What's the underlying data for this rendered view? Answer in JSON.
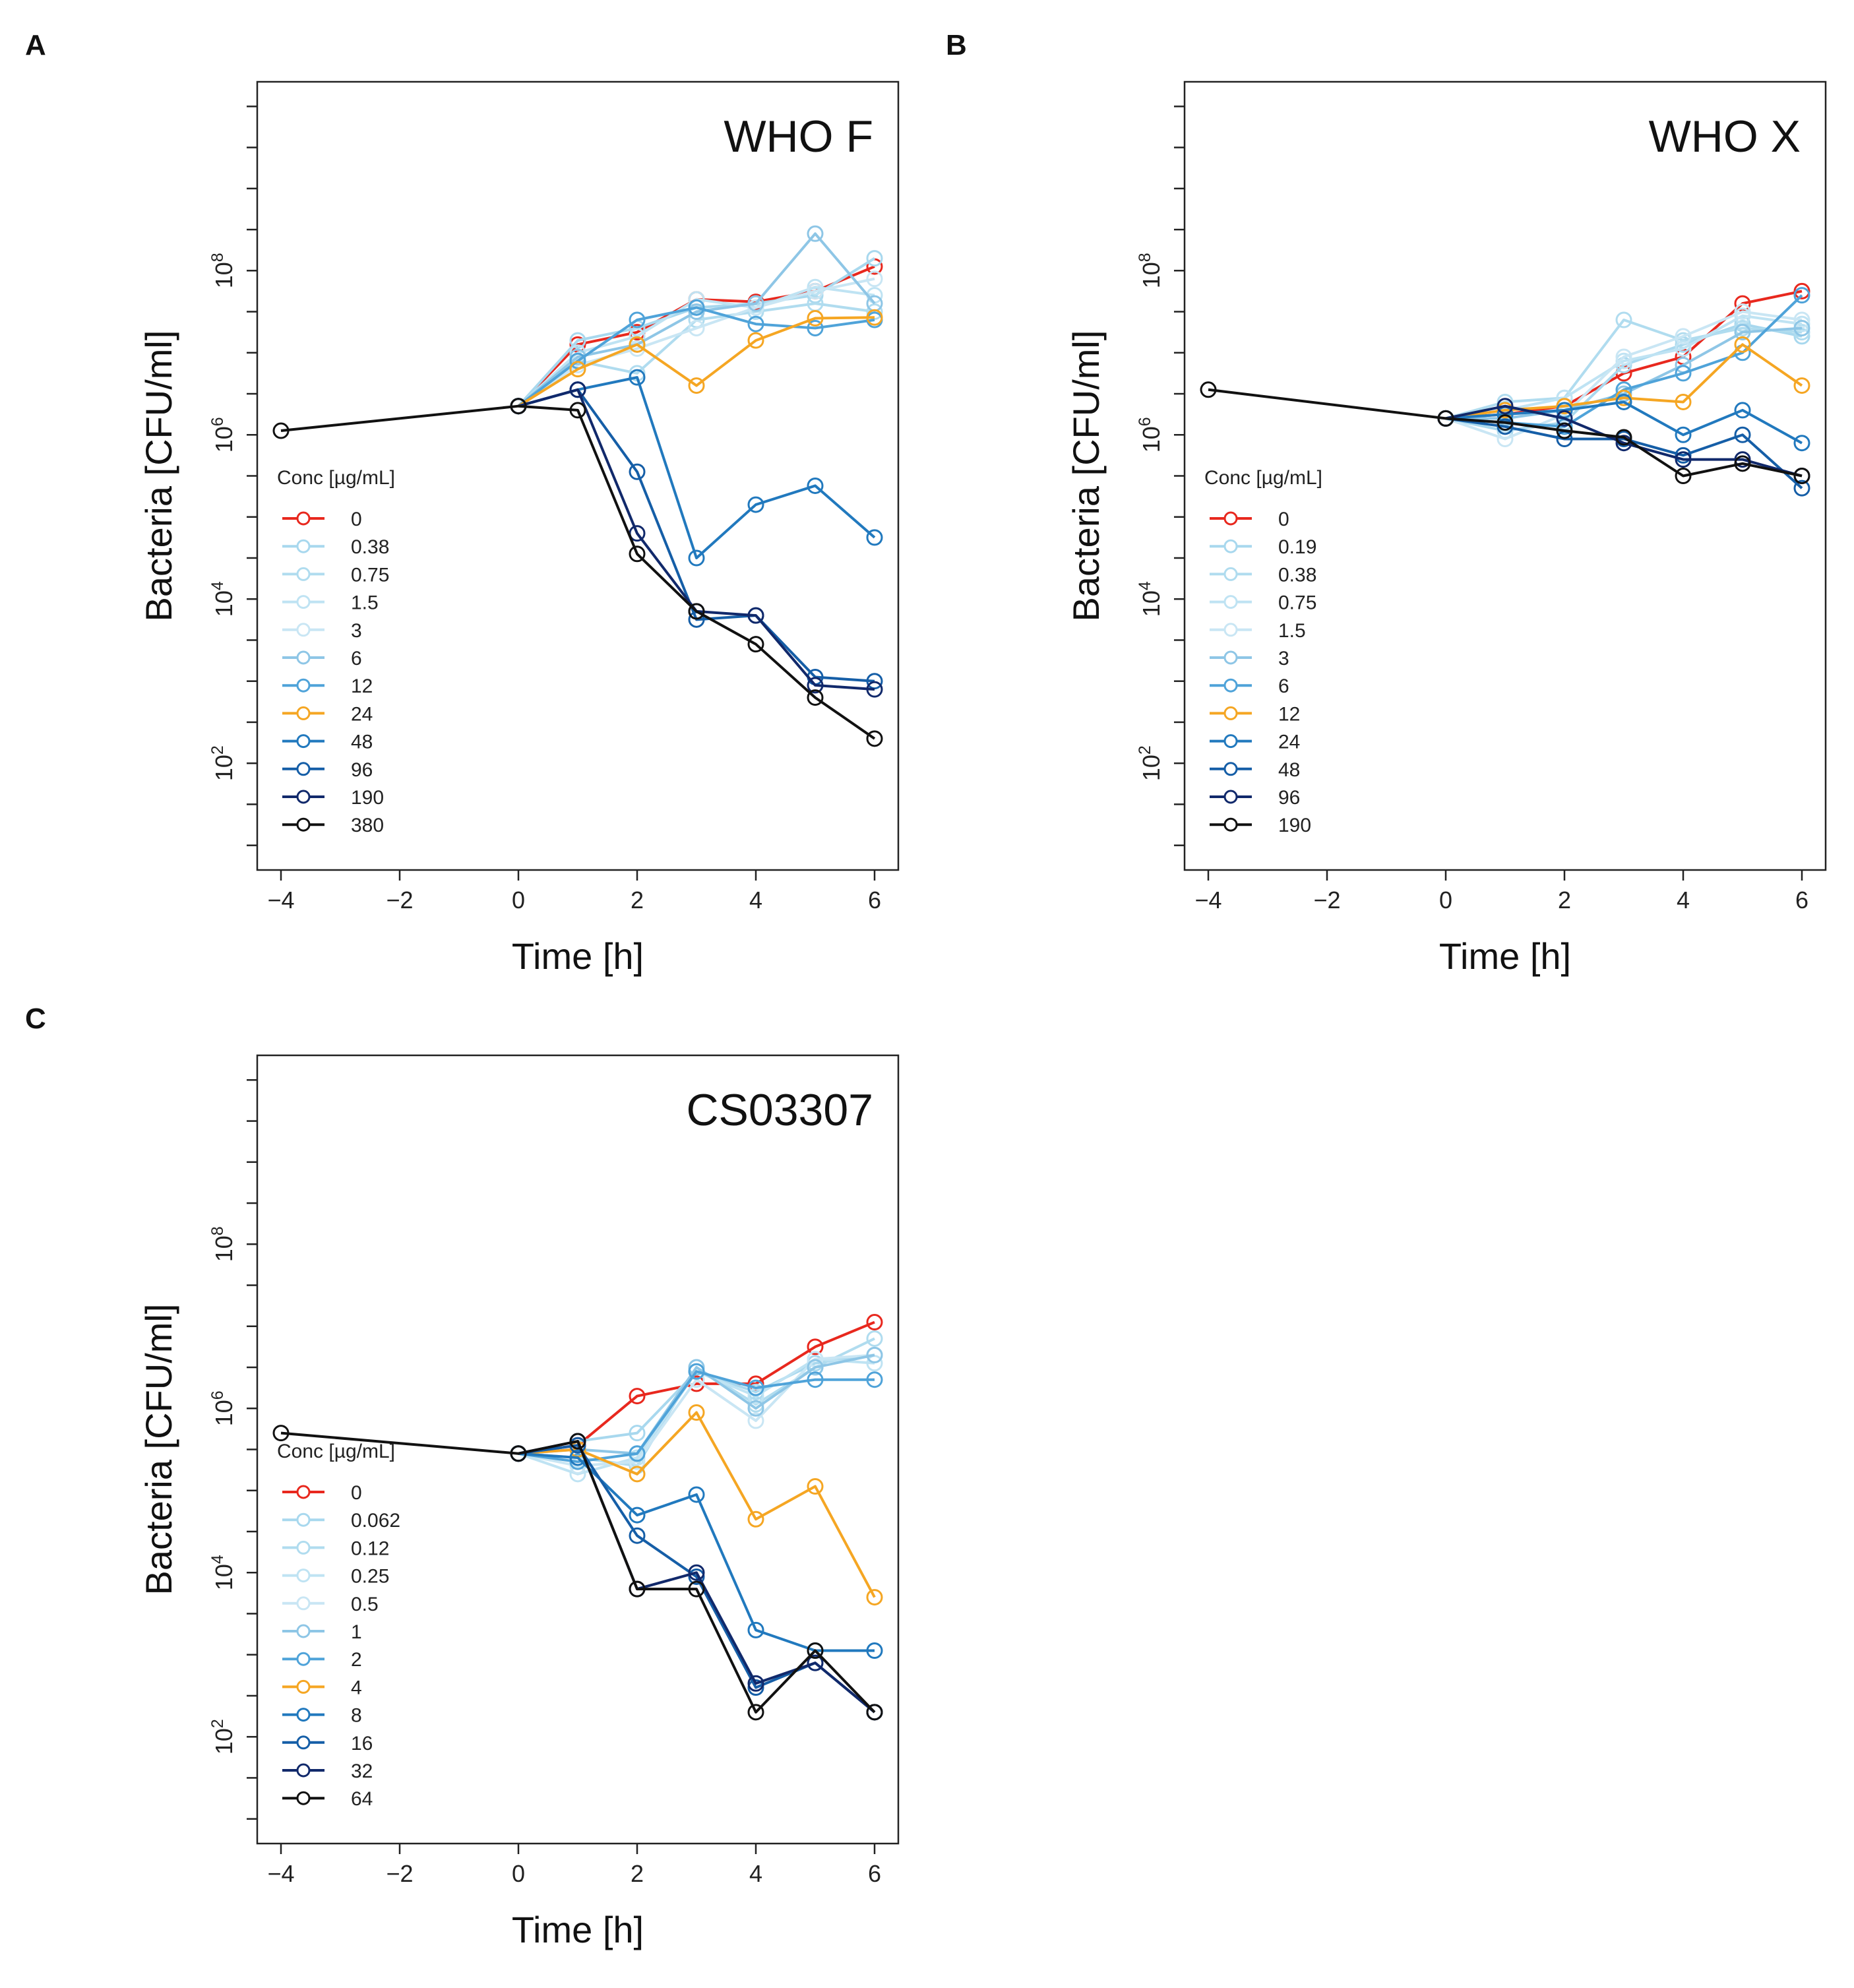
{
  "chart_data": [
    {
      "panel_letter": "A",
      "type": "line",
      "title": "WHO F",
      "xlabel": "Time [h]",
      "ylabel": "Bacteria [CFU/ml]",
      "xlim": [
        -4.4,
        6.4
      ],
      "xticks": [
        -4,
        -2,
        0,
        2,
        4,
        6
      ],
      "xtick_labels": [
        "−4",
        "−2",
        "0",
        "2",
        "4",
        "6"
      ],
      "ylim_log10": [
        0.7,
        10.3
      ],
      "ytick_exponents": [
        2,
        4,
        6,
        8
      ],
      "legend_title": "Conc [µg/mL]",
      "legend_position": "left",
      "series": [
        {
          "name": "0",
          "color": "#e8281e",
          "x": [
            0,
            1,
            2,
            3,
            4,
            5,
            6
          ],
          "log10_y": [
            6.35,
            7.1,
            7.25,
            7.65,
            7.62,
            7.75,
            8.05
          ]
        },
        {
          "name": "0.38",
          "color": "#a8d8ee",
          "x": [
            0,
            1,
            2,
            3,
            4,
            5,
            6
          ],
          "log10_y": [
            6.35,
            7.15,
            7.3,
            7.55,
            7.6,
            7.7,
            8.15
          ]
        },
        {
          "name": "0.75",
          "color": "#b0dcef",
          "x": [
            0,
            1,
            2,
            3,
            4,
            5,
            6
          ],
          "log10_y": [
            6.35,
            6.9,
            6.75,
            7.4,
            7.5,
            7.6,
            7.5
          ]
        },
        {
          "name": "1.5",
          "color": "#bfe3f3",
          "x": [
            0,
            1,
            2,
            3,
            4,
            5,
            6
          ],
          "log10_y": [
            6.35,
            7.0,
            7.2,
            7.65,
            7.55,
            7.8,
            7.7
          ]
        },
        {
          "name": "3",
          "color": "#c9e6f4",
          "x": [
            0,
            1,
            2,
            3,
            4,
            5,
            6
          ],
          "log10_y": [
            6.35,
            6.85,
            7.05,
            7.3,
            7.55,
            7.75,
            7.9
          ]
        },
        {
          "name": "6",
          "color": "#8ec6e6",
          "x": [
            0,
            1,
            2,
            3,
            4,
            5,
            6
          ],
          "log10_y": [
            6.35,
            6.95,
            7.1,
            7.5,
            7.6,
            8.45,
            7.6
          ]
        },
        {
          "name": "12",
          "color": "#4fa3d9",
          "x": [
            0,
            1,
            2,
            3,
            4,
            5,
            6
          ],
          "log10_y": [
            6.35,
            6.9,
            7.4,
            7.55,
            7.35,
            7.3,
            7.4
          ]
        },
        {
          "name": "24",
          "color": "#f5a623",
          "x": [
            0,
            1,
            2,
            3,
            4,
            5,
            6
          ],
          "log10_y": [
            6.35,
            6.8,
            7.1,
            6.6,
            7.15,
            7.42,
            7.43
          ]
        },
        {
          "name": "48",
          "color": "#2179be",
          "x": [
            0,
            1,
            2,
            3,
            4,
            5,
            6
          ],
          "log10_y": [
            6.35,
            6.55,
            6.7,
            4.5,
            5.15,
            5.38,
            4.75
          ]
        },
        {
          "name": "96",
          "color": "#155ea7",
          "x": [
            0,
            1,
            2,
            3,
            4,
            5,
            6
          ],
          "log10_y": [
            6.35,
            6.55,
            5.55,
            3.75,
            3.8,
            3.05,
            3.0
          ]
        },
        {
          "name": "190",
          "color": "#11296b",
          "x": [
            0,
            1,
            2,
            3,
            4,
            5,
            6
          ],
          "log10_y": [
            6.35,
            6.55,
            4.8,
            3.85,
            3.8,
            2.95,
            2.9
          ]
        },
        {
          "name": "380",
          "color": "#111111",
          "x": [
            -4,
            0,
            1,
            2,
            3,
            4,
            5,
            6
          ],
          "log10_y": [
            6.05,
            6.35,
            6.3,
            4.55,
            3.85,
            3.45,
            2.8,
            2.3
          ]
        }
      ]
    },
    {
      "panel_letter": "B",
      "type": "line",
      "title": "WHO X",
      "xlabel": "Time [h]",
      "ylabel": "Bacteria [CFU/ml]",
      "xlim": [
        -4.4,
        6.4
      ],
      "xticks": [
        -4,
        -2,
        0,
        2,
        4,
        6
      ],
      "xtick_labels": [
        "−4",
        "−2",
        "0",
        "2",
        "4",
        "6"
      ],
      "ylim_log10": [
        0.7,
        10.3
      ],
      "ytick_exponents": [
        2,
        4,
        6,
        8
      ],
      "legend_title": "Conc [µg/mL]",
      "legend_position": "left",
      "series": [
        {
          "name": "0",
          "color": "#e8281e",
          "x": [
            0,
            1,
            2,
            3,
            4,
            5,
            6
          ],
          "log10_y": [
            6.2,
            6.25,
            6.35,
            6.75,
            6.95,
            7.6,
            7.75
          ]
        },
        {
          "name": "0.19",
          "color": "#a8d8ee",
          "x": [
            0,
            1,
            2,
            3,
            4,
            5,
            6
          ],
          "log10_y": [
            6.2,
            6.05,
            6.15,
            6.85,
            7.1,
            7.35,
            7.2
          ]
        },
        {
          "name": "0.38",
          "color": "#b0dcef",
          "x": [
            0,
            1,
            2,
            3,
            4,
            5,
            6
          ],
          "log10_y": [
            6.2,
            6.4,
            6.45,
            7.4,
            7.15,
            7.3,
            7.25
          ]
        },
        {
          "name": "0.75",
          "color": "#bfe3f3",
          "x": [
            0,
            1,
            2,
            3,
            4,
            5,
            6
          ],
          "log10_y": [
            6.2,
            6.3,
            6.45,
            6.9,
            7.05,
            7.45,
            7.35
          ]
        },
        {
          "name": "1.5",
          "color": "#c9e6f4",
          "x": [
            0,
            1,
            2,
            3,
            4,
            5,
            6
          ],
          "log10_y": [
            6.2,
            5.95,
            6.25,
            6.95,
            7.2,
            7.5,
            7.4
          ]
        },
        {
          "name": "3",
          "color": "#8ec6e6",
          "x": [
            0,
            1,
            2,
            3,
            4,
            5,
            6
          ],
          "log10_y": [
            6.2,
            6.2,
            6.3,
            6.5,
            6.85,
            7.25,
            7.3
          ]
        },
        {
          "name": "6",
          "color": "#4fa3d9",
          "x": [
            0,
            1,
            2,
            3,
            4,
            5,
            6
          ],
          "log10_y": [
            6.2,
            6.15,
            6.1,
            6.55,
            6.75,
            7.0,
            7.7
          ]
        },
        {
          "name": "12",
          "color": "#f5a623",
          "x": [
            0,
            1,
            2,
            3,
            4,
            5,
            6
          ],
          "log10_y": [
            6.2,
            6.3,
            6.35,
            6.45,
            6.4,
            7.1,
            6.6
          ]
        },
        {
          "name": "24",
          "color": "#2179be",
          "x": [
            0,
            1,
            2,
            3,
            4,
            5,
            6
          ],
          "log10_y": [
            6.2,
            6.25,
            6.3,
            6.4,
            6.0,
            6.3,
            5.9
          ]
        },
        {
          "name": "48",
          "color": "#155ea7",
          "x": [
            0,
            1,
            2,
            3,
            4,
            5,
            6
          ],
          "log10_y": [
            6.2,
            6.1,
            5.95,
            5.95,
            5.75,
            6.0,
            5.35
          ]
        },
        {
          "name": "96",
          "color": "#11296b",
          "x": [
            0,
            1,
            2,
            3,
            4,
            5,
            6
          ],
          "log10_y": [
            6.2,
            6.35,
            6.2,
            5.9,
            5.7,
            5.7,
            5.5
          ]
        },
        {
          "name": "190",
          "color": "#111111",
          "x": [
            -4,
            0,
            1,
            2,
            3,
            4,
            5,
            6
          ],
          "log10_y": [
            6.55,
            6.2,
            6.15,
            6.05,
            5.97,
            5.5,
            5.65,
            5.5
          ]
        }
      ]
    },
    {
      "panel_letter": "C",
      "type": "line",
      "title": "CS03307",
      "xlabel": "Time [h]",
      "ylabel": "Bacteria [CFU/ml]",
      "xlim": [
        -4.4,
        6.4
      ],
      "xticks": [
        -4,
        -2,
        0,
        2,
        4,
        6
      ],
      "xtick_labels": [
        "−4",
        "−2",
        "0",
        "2",
        "4",
        "6"
      ],
      "ylim_log10": [
        0.7,
        10.3
      ],
      "ytick_exponents": [
        2,
        4,
        6,
        8
      ],
      "legend_title": "Conc [µg/mL]",
      "legend_position": "left",
      "series": [
        {
          "name": "0",
          "color": "#e8281e",
          "x": [
            0,
            1,
            2,
            3,
            4,
            5,
            6
          ],
          "log10_y": [
            5.45,
            5.55,
            6.15,
            6.3,
            6.3,
            6.75,
            7.05
          ]
        },
        {
          "name": "0.062",
          "color": "#a8d8ee",
          "x": [
            0,
            1,
            2,
            3,
            4,
            5,
            6
          ],
          "log10_y": [
            5.45,
            5.6,
            5.7,
            6.45,
            6.2,
            6.55,
            6.65
          ]
        },
        {
          "name": "0.12",
          "color": "#b0dcef",
          "x": [
            0,
            1,
            2,
            3,
            4,
            5,
            6
          ],
          "log10_y": [
            5.45,
            5.4,
            5.3,
            6.5,
            6.05,
            6.5,
            6.85
          ]
        },
        {
          "name": "0.25",
          "color": "#bfe3f3",
          "x": [
            0,
            1,
            2,
            3,
            4,
            5,
            6
          ],
          "log10_y": [
            5.45,
            5.2,
            5.4,
            6.45,
            6.15,
            6.6,
            6.55
          ]
        },
        {
          "name": "0.5",
          "color": "#c9e6f4",
          "x": [
            0,
            1,
            2,
            3,
            4,
            5,
            6
          ],
          "log10_y": [
            5.45,
            5.3,
            5.35,
            6.35,
            5.85,
            6.6,
            6.65
          ]
        },
        {
          "name": "1",
          "color": "#8ec6e6",
          "x": [
            0,
            1,
            2,
            3,
            4,
            5,
            6
          ],
          "log10_y": [
            5.45,
            5.5,
            5.45,
            6.5,
            6.0,
            6.5,
            6.65
          ]
        },
        {
          "name": "2",
          "color": "#4fa3d9",
          "x": [
            0,
            1,
            2,
            3,
            4,
            5,
            6
          ],
          "log10_y": [
            5.45,
            5.35,
            5.45,
            6.45,
            6.25,
            6.35,
            6.35
          ]
        },
        {
          "name": "4",
          "color": "#f5a623",
          "x": [
            0,
            1,
            2,
            3,
            4,
            5,
            6
          ],
          "log10_y": [
            5.45,
            5.5,
            5.2,
            5.95,
            4.65,
            5.05,
            3.7
          ]
        },
        {
          "name": "8",
          "color": "#2179be",
          "x": [
            0,
            1,
            2,
            3,
            4,
            5,
            6
          ],
          "log10_y": [
            5.45,
            5.4,
            4.7,
            4.95,
            3.3,
            3.05,
            3.05
          ]
        },
        {
          "name": "16",
          "color": "#155ea7",
          "x": [
            0,
            1,
            2,
            3,
            4,
            5,
            6
          ],
          "log10_y": [
            5.45,
            5.55,
            4.45,
            3.95,
            2.6,
            2.9,
            2.3
          ]
        },
        {
          "name": "32",
          "color": "#11296b",
          "x": [
            0,
            1,
            2,
            3,
            4,
            5,
            6
          ],
          "log10_y": [
            5.45,
            5.6,
            3.8,
            4.0,
            2.65,
            2.9,
            2.3
          ]
        },
        {
          "name": "64",
          "color": "#111111",
          "x": [
            -4,
            0,
            1,
            2,
            3,
            4,
            5,
            6
          ],
          "log10_y": [
            5.7,
            5.45,
            5.6,
            3.8,
            3.8,
            2.3,
            3.05,
            2.3
          ]
        }
      ]
    }
  ]
}
